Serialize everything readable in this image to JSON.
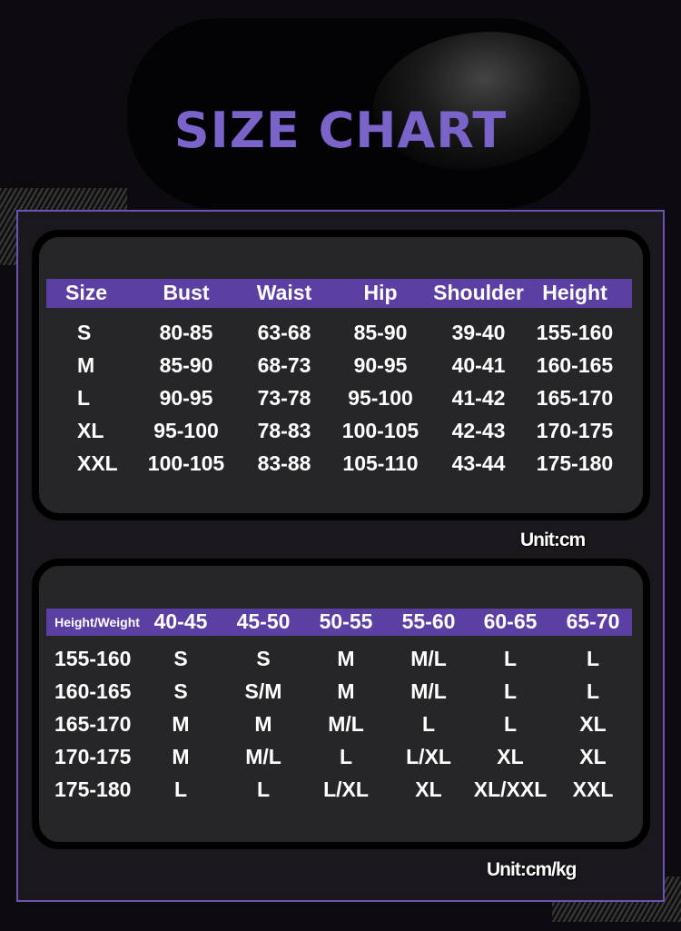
{
  "title": "SIZE CHART",
  "size_table": {
    "headers": [
      "Size",
      "Bust",
      "Waist",
      "Hip",
      "Shoulder",
      "Height"
    ],
    "rows": [
      [
        "S",
        "80-85",
        "63-68",
        "85-90",
        "39-40",
        "155-160"
      ],
      [
        "M",
        "85-90",
        "68-73",
        "90-95",
        "40-41",
        "160-165"
      ],
      [
        "L",
        "90-95",
        "73-78",
        "95-100",
        "41-42",
        "165-170"
      ],
      [
        "XL",
        "95-100",
        "78-83",
        "100-105",
        "42-43",
        "170-175"
      ],
      [
        "XXL",
        "100-105",
        "83-88",
        "105-110",
        "43-44",
        "175-180"
      ]
    ],
    "unit": "Unit:cm"
  },
  "fit_table": {
    "headers": [
      "Height/Weight",
      "40-45",
      "45-50",
      "50-55",
      "55-60",
      "60-65",
      "65-70"
    ],
    "rows": [
      [
        "155-160",
        "S",
        "S",
        "M",
        "M/L",
        "L",
        "L"
      ],
      [
        "160-165",
        "S",
        "S/M",
        "M",
        "M/L",
        "L",
        "L"
      ],
      [
        "165-170",
        "M",
        "M",
        "M/L",
        "L",
        "L",
        "XL"
      ],
      [
        "170-175",
        "M",
        "M/L",
        "L",
        "L/XL",
        "XL",
        "XL"
      ],
      [
        "175-180",
        "L",
        "L",
        "L/XL",
        "XL",
        "XL/XXL",
        "XXL"
      ]
    ],
    "unit": "Unit:cm/kg"
  },
  "colors": {
    "accent": "#5b3fa3",
    "title": "#7a63c9",
    "frame": "#6c52b5"
  }
}
